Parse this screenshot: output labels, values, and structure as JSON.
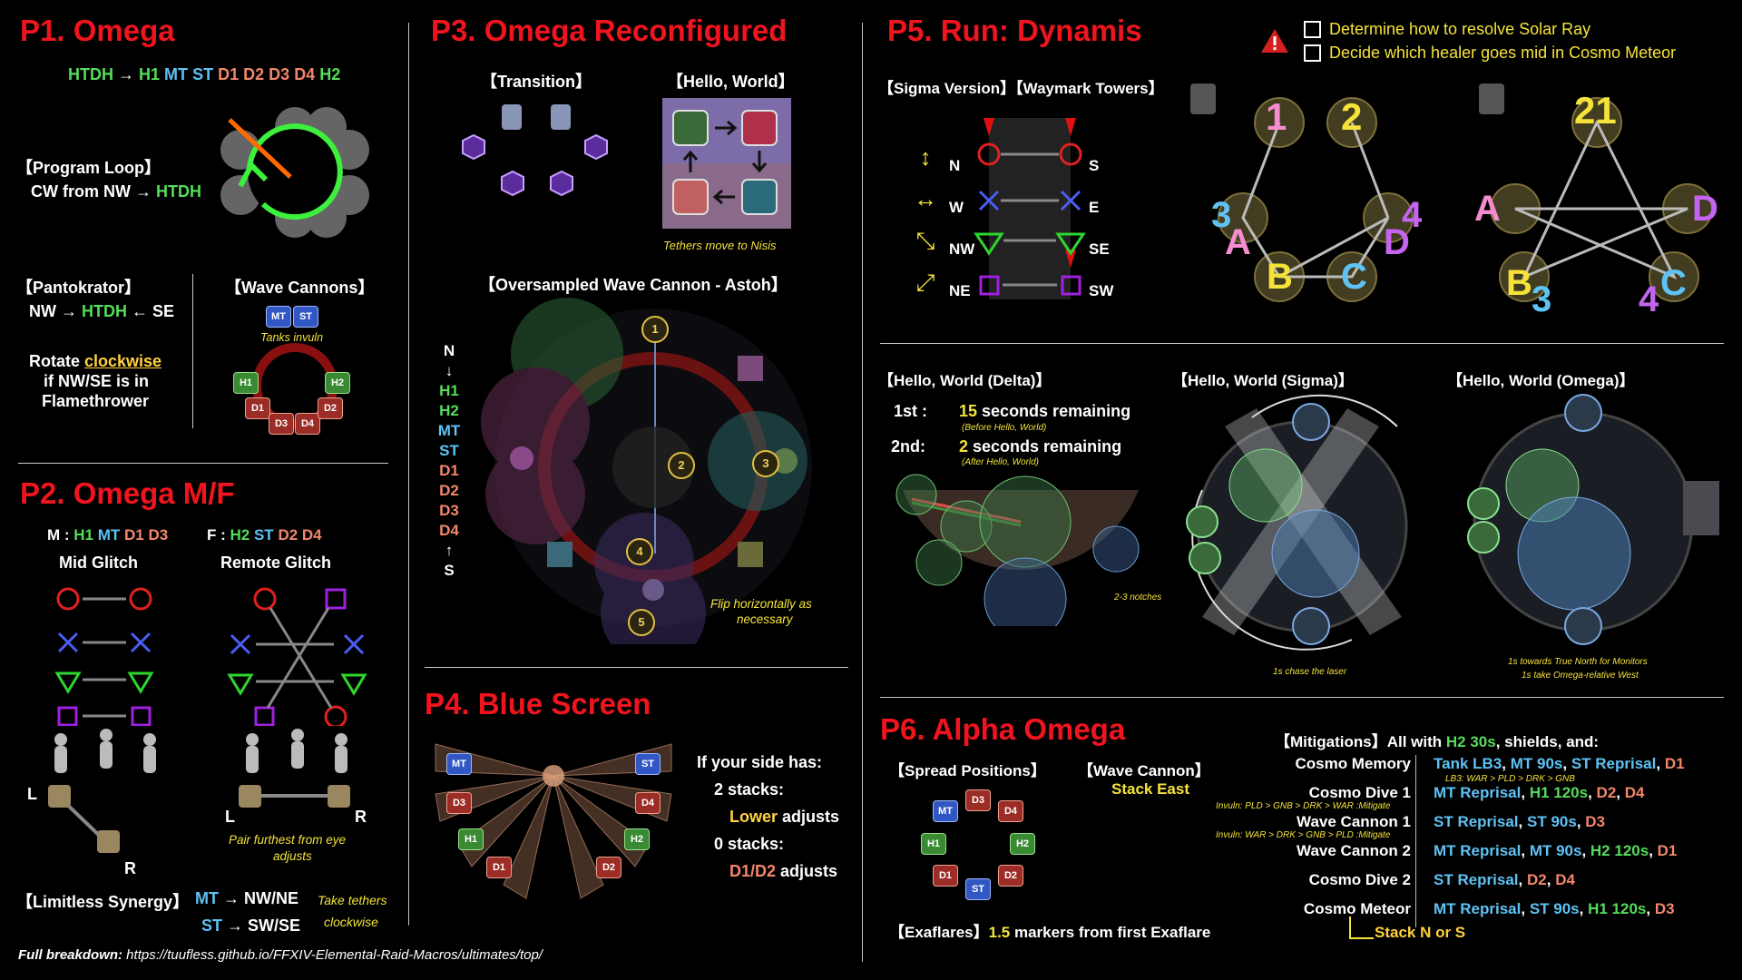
{
  "p1": {
    "title": "P1. Omega",
    "priority": [
      "HTDH",
      " → ",
      "H1",
      "MT",
      "ST",
      "D1",
      "D2",
      "D3",
      "D4",
      "H2"
    ],
    "program_loop_title": "【Program Loop】",
    "program_loop_text": "CW from NW → ",
    "program_loop_accent": "HTDH",
    "pantokrator_title": "【Pantokrator】",
    "pantokrator_text_a": "NW → ",
    "pantokrator_accent": "HTDH",
    "pantokrator_text_b": " ← SE",
    "rotate_a": "Rotate ",
    "rotate_accent": "clockwise",
    "rotate_b": "if NW/SE is in",
    "rotate_c": "Flamethrower",
    "wave_cannons_title": "【Wave Cannons】",
    "tanks_invuln": "Tanks invuln",
    "wave_roles": [
      "MT",
      "ST",
      "H1",
      "H2",
      "D1",
      "D3",
      "D4",
      "D2"
    ]
  },
  "p2": {
    "title": "P2. Omega M/F",
    "m_prefix": "M : ",
    "m_roles": [
      "H1",
      "MT",
      "D1",
      "D3"
    ],
    "f_prefix": "F : ",
    "f_roles": [
      "H2",
      "ST",
      "D2",
      "D4"
    ],
    "mid_glitch": "Mid Glitch",
    "remote_glitch": "Remote Glitch",
    "l": "L",
    "r": "R",
    "pair_note_a": "Pair furthest from eye",
    "pair_note_b": "adjusts",
    "synergy_title": "【Limitless Synergy】",
    "synergy_mt": "MT",
    "synergy_mt_dir": " → NW/NE",
    "synergy_st": "ST",
    "synergy_st_dir": " → SW/SE",
    "take_tethers": "Take tethers",
    "clockwise": "clockwise"
  },
  "footer": {
    "label": "Full breakdown:",
    "url": " https://tuufless.github.io/FFXIV-Elemental-Raid-Macros/ultimates/top/"
  },
  "p3": {
    "title": "P3. Omega Reconfigured",
    "transition": "【Transition】",
    "hello_world": "【Hello, World】",
    "tethers_note": "Tethers move to Nisis",
    "oversampled": "【Oversampled Wave Cannon - Astoh】",
    "column": [
      "N",
      "↓",
      "H1",
      "H2",
      "MT",
      "ST",
      "D1",
      "D2",
      "D3",
      "D4",
      "↑",
      "S"
    ],
    "markers": [
      "1",
      "2",
      "3",
      "4",
      "5"
    ],
    "flip_a": "Flip horizontally as",
    "flip_b": "necessary"
  },
  "p4": {
    "title": "P4. Blue Screen",
    "fan_roles": [
      "MT",
      "ST",
      "D3",
      "D4",
      "H1",
      "H2",
      "D1",
      "D2"
    ],
    "if_side": "If your side has:",
    "two_stacks": "2 stacks:",
    "lower": "Lower",
    "adjusts": " adjusts",
    "zero_stacks": "0 stacks:",
    "d1d2": "D1/D2",
    "adjusts2": " adjusts"
  },
  "p5": {
    "title": "P5. Run: Dynamis",
    "warning_items": [
      "Determine how to resolve Solar Ray",
      "Decide which healer goes mid in Cosmo Meteor"
    ],
    "sigma_title": "【Sigma Version】【Waymark Towers】",
    "directions": [
      {
        "arrow": "↕",
        "a": "N",
        "b": "S"
      },
      {
        "arrow": "↔",
        "a": "W",
        "b": "E"
      },
      {
        "arrow": "⤡",
        "a": "NW",
        "b": "SE"
      },
      {
        "arrow": "⤢",
        "a": "NE",
        "b": "SW"
      }
    ],
    "waymarks_left": [
      "1",
      "2",
      "3",
      "A",
      "B",
      "C",
      "D",
      "4"
    ],
    "waymarks_right": [
      "21",
      "A",
      "D",
      "B",
      "3",
      "C",
      "4"
    ],
    "delta_title": "【Hello, World (Delta)】",
    "first": "1st :",
    "first_num": "15",
    "first_text": " seconds remaining",
    "first_sub": "(Before Hello, World)",
    "second": "2nd:",
    "second_num": "2",
    "second_text": " seconds remaining",
    "second_sub": "(After Hello, World)",
    "notches": "2-3 notches",
    "sigma_hw": "【Hello, World (Sigma)】",
    "chase": "1s chase the laser",
    "omega_hw": "【Hello, World (Omega)】",
    "omega_note_a": "1s towards True North for Monitors",
    "omega_note_b": "1s take Omega-relative West"
  },
  "p6": {
    "title": "P6. Alpha Omega",
    "spread": "【Spread Positions】",
    "spread_roles": [
      "D3",
      "MT",
      "D4",
      "H1",
      "H2",
      "D1",
      "ST",
      "D2"
    ],
    "wave_cannon": "【Wave Cannon】",
    "stack_east": "Stack East",
    "exaflares_title": "【Exaflares】",
    "exaflares_num": "1.5",
    "exaflares_text": " markers from first Exaflare",
    "mit_title": "【Mitigations】All with ",
    "mit_h2": "H2 30s",
    "mit_rest": ", shields, and:",
    "rows": [
      {
        "name": "Cosmo Memory",
        "mit": [
          [
            "Tank LB3",
            "blu"
          ],
          [
            ", ",
            "w"
          ],
          [
            "MT 90s",
            "blu"
          ],
          [
            ", ",
            "w"
          ],
          [
            "ST Reprisal",
            "blu"
          ],
          [
            ",  ",
            "w"
          ],
          [
            "D1",
            "sal"
          ]
        ],
        "sub": "LB3: WAR > PLD > DRK > GNB"
      },
      {
        "name": "Cosmo Dive 1",
        "mit": [
          [
            "MT Reprisal",
            "blu"
          ],
          [
            ", ",
            "w"
          ],
          [
            "H1 120s",
            "grn"
          ],
          [
            ", ",
            "w"
          ],
          [
            "D2",
            "sal"
          ],
          [
            ", ",
            "w"
          ],
          [
            "D4",
            "sal"
          ]
        ],
        "sub": ""
      },
      {
        "name": "Wave Cannon 1",
        "mit": [
          [
            "ST Reprisal",
            "blu"
          ],
          [
            ", ",
            "w"
          ],
          [
            "ST 90s",
            "blu"
          ],
          [
            ", ",
            "w"
          ],
          [
            "D3",
            "sal"
          ]
        ],
        "sub": "Invuln: PLD > GNB > DRK > WAR :Mitigate"
      },
      {
        "name": "Wave Cannon 2",
        "mit": [
          [
            "MT Reprisal",
            "blu"
          ],
          [
            ", ",
            "w"
          ],
          [
            "MT 90s",
            "blu"
          ],
          [
            ", ",
            "w"
          ],
          [
            "H2 120s",
            "grn"
          ],
          [
            ", ",
            "w"
          ],
          [
            "D1",
            "sal"
          ]
        ],
        "sub": "Invuln: WAR > DRK > GNB > PLD :Mitigate"
      },
      {
        "name": "Cosmo Dive 2",
        "mit": [
          [
            "ST Reprisal",
            "blu"
          ],
          [
            ", ",
            "w"
          ],
          [
            "D2",
            "sal"
          ],
          [
            ", ",
            "w"
          ],
          [
            "D4",
            "sal"
          ]
        ],
        "sub": ""
      },
      {
        "name": "Cosmo Meteor",
        "mit": [
          [
            "MT Reprisal",
            "blu"
          ],
          [
            ", ",
            "w"
          ],
          [
            "ST 90s",
            "blu"
          ],
          [
            ", ",
            "w"
          ],
          [
            "H1 120s",
            "grn"
          ],
          [
            ", ",
            "w"
          ],
          [
            "D3",
            "sal"
          ]
        ],
        "sub": ""
      }
    ],
    "stack_ns": "Stack N or S"
  },
  "colors": {
    "title_red": "#f0141e",
    "yellow": "#f5e33a",
    "green": "#55dc5a",
    "blue": "#5ec2f5",
    "dps": "#f2866b"
  }
}
